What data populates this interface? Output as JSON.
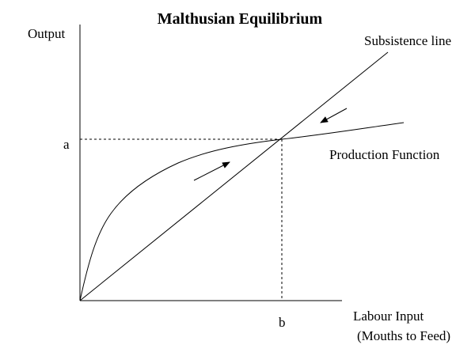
{
  "diagram": {
    "title": "Malthusian Equilibrium",
    "y_axis_label": "Output",
    "x_axis_label_line1": "Labour Input",
    "x_axis_label_line2": "(Mouths to Feed)",
    "equilibrium_output_label": "a",
    "equilibrium_labour_label": "b",
    "subsistence_line_label": "Subsistence line",
    "production_function_label": "Production Function"
  }
}
